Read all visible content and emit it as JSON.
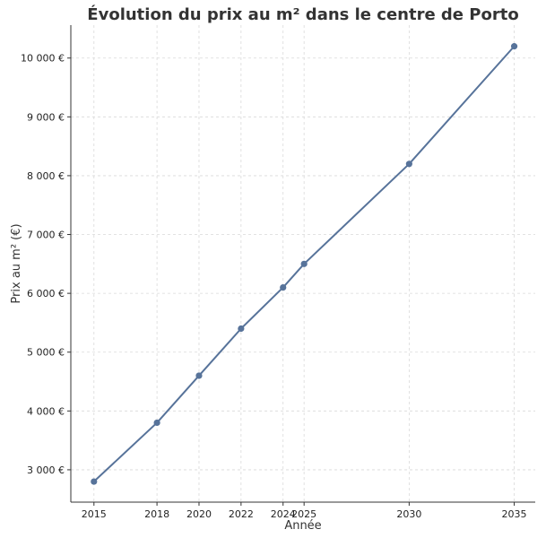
{
  "chart_data": {
    "type": "line",
    "title": "Évolution du prix au m² dans le centre de Porto",
    "xlabel": "Année",
    "ylabel": "Prix au m² (€)",
    "x": [
      2015,
      2018,
      2020,
      2022,
      2024,
      2025,
      2030,
      2035
    ],
    "series": [
      {
        "values": [
          2800,
          3800,
          4600,
          5400,
          6100,
          6500,
          8200,
          10200
        ]
      }
    ],
    "x_ticks": [
      2015,
      2018,
      2020,
      2022,
      2024,
      2025,
      2030,
      2035
    ],
    "x_tick_labels": [
      "2015",
      "2018",
      "2020",
      "2022",
      "2024",
      "2025",
      "2030",
      "2035"
    ],
    "y_ticks": [
      3000,
      4000,
      5000,
      6000,
      7000,
      8000,
      9000,
      10000
    ],
    "y_tick_labels": [
      "3 000 €",
      "4 000 €",
      "5 000 €",
      "6 000 €",
      "7 000 €",
      "8 000 €",
      "9 000 €",
      "10 000 €"
    ],
    "xlim": [
      2013.9,
      2036.0
    ],
    "ylim": [
      2450,
      10560
    ],
    "grid": true,
    "colors": {
      "line": "#57739a",
      "marker": "#57739a",
      "grid": "#d9d9d9",
      "axis": "#333333"
    }
  }
}
